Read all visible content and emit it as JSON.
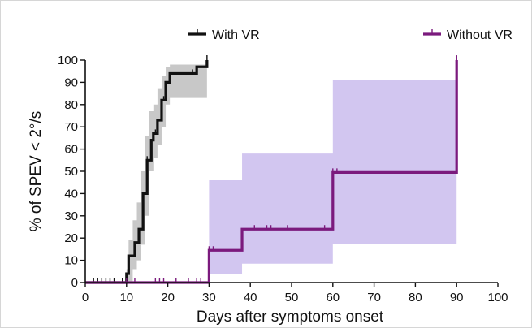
{
  "chart_data": {
    "type": "line",
    "subtype": "kaplan-meier-step",
    "xlabel": "Days after symptoms onset",
    "ylabel": "% of SPEV < 2°/s",
    "xlim": [
      0,
      100
    ],
    "ylim": [
      0,
      100
    ],
    "xticks": [
      0,
      10,
      20,
      30,
      40,
      50,
      60,
      70,
      80,
      90,
      100
    ],
    "yticks": [
      0,
      10,
      20,
      30,
      40,
      50,
      60,
      70,
      80,
      90,
      100
    ],
    "grid": false,
    "legend_position": "top",
    "series": [
      {
        "name": "With VR",
        "color": "#111111",
        "band_color": "#c8c8c8",
        "steps": [
          [
            0,
            0
          ],
          [
            10,
            4
          ],
          [
            10.5,
            12
          ],
          [
            12,
            18
          ],
          [
            13,
            24
          ],
          [
            14,
            40
          ],
          [
            15,
            55
          ],
          [
            16,
            64
          ],
          [
            16.5,
            67
          ],
          [
            17.5,
            73
          ],
          [
            18.5,
            82
          ],
          [
            19.5,
            90
          ],
          [
            20.5,
            94
          ],
          [
            27,
            97
          ],
          [
            29.5,
            100
          ]
        ],
        "end_x": 29.5,
        "ci_band": [
          [
            9.5,
            0,
            0
          ],
          [
            10,
            0,
            6
          ],
          [
            10.5,
            0,
            19
          ],
          [
            11.5,
            6,
            28
          ],
          [
            12.5,
            10,
            36
          ],
          [
            13.5,
            17,
            50
          ],
          [
            14.5,
            30,
            66
          ],
          [
            15.5,
            50,
            77
          ],
          [
            16.5,
            56,
            80
          ],
          [
            17.5,
            62,
            87
          ],
          [
            18.5,
            70,
            93
          ],
          [
            19.5,
            80,
            97
          ],
          [
            20.5,
            83,
            98
          ],
          [
            25.5,
            83,
            98
          ],
          [
            29.5,
            88,
            100
          ]
        ],
        "censored_x": [
          2,
          3,
          4,
          5,
          6,
          7,
          9,
          15,
          17,
          19,
          26
        ]
      },
      {
        "name": "Without VR",
        "color": "#7b1a7d",
        "band_color": "#d2c6f0",
        "steps": [
          [
            0,
            0
          ],
          [
            30,
            14.5
          ],
          [
            38,
            24
          ],
          [
            60,
            49.5
          ],
          [
            90,
            100
          ]
        ],
        "end_x": 90,
        "ci_band": [
          [
            30,
            4,
            46
          ],
          [
            38,
            8.5,
            58
          ],
          [
            60,
            17.5,
            91
          ],
          [
            90,
            17.5,
            91
          ]
        ],
        "censored_x": [
          10,
          12,
          17,
          18,
          19,
          22,
          25,
          27,
          28,
          30,
          31,
          41,
          44,
          45,
          49,
          58,
          60,
          61,
          90
        ]
      }
    ]
  }
}
